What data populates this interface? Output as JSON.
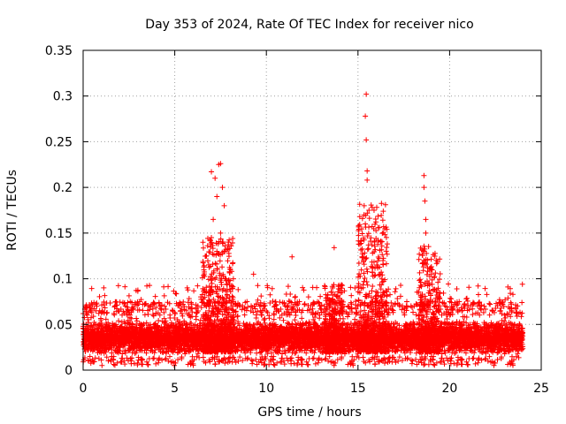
{
  "chart_data": {
    "type": "scatter",
    "title": "Day 353 of 2024, Rate Of TEC Index for receiver nico",
    "xlabel": "GPS time / hours",
    "ylabel": "ROTI / TECUs",
    "xlim": [
      0,
      25
    ],
    "ylim": [
      0,
      0.35
    ],
    "xticks": [
      0,
      5,
      10,
      15,
      20,
      25
    ],
    "xtick_labels": [
      "0",
      "5",
      "10",
      "15",
      "20",
      "25"
    ],
    "yticks": [
      0,
      0.05,
      0.1,
      0.15,
      0.2,
      0.25,
      0.3,
      0.35
    ],
    "ytick_labels": [
      "0",
      "0.05",
      "0.1",
      "0.15",
      "0.2",
      "0.25",
      "0.3",
      "0.35"
    ],
    "grid": true,
    "marker": "+",
    "color": "#ff0000",
    "series": [
      {
        "name": "ROTI",
        "notable_points": [
          {
            "x": 7.0,
            "y": 0.217
          },
          {
            "x": 7.2,
            "y": 0.21
          },
          {
            "x": 7.3,
            "y": 0.19
          },
          {
            "x": 7.1,
            "y": 0.165
          },
          {
            "x": 7.0,
            "y": 0.145
          },
          {
            "x": 7.4,
            "y": 0.225
          },
          {
            "x": 7.5,
            "y": 0.226
          },
          {
            "x": 7.6,
            "y": 0.2
          },
          {
            "x": 7.7,
            "y": 0.18
          },
          {
            "x": 7.5,
            "y": 0.15
          },
          {
            "x": 7.3,
            "y": 0.13
          },
          {
            "x": 7.6,
            "y": 0.14
          },
          {
            "x": 9.3,
            "y": 0.105
          },
          {
            "x": 11.4,
            "y": 0.124
          },
          {
            "x": 13.7,
            "y": 0.134
          },
          {
            "x": 15.45,
            "y": 0.302
          },
          {
            "x": 15.4,
            "y": 0.278
          },
          {
            "x": 15.45,
            "y": 0.252
          },
          {
            "x": 15.5,
            "y": 0.218
          },
          {
            "x": 15.5,
            "y": 0.208
          },
          {
            "x": 15.6,
            "y": 0.175
          },
          {
            "x": 15.4,
            "y": 0.16
          },
          {
            "x": 15.3,
            "y": 0.12
          },
          {
            "x": 16.5,
            "y": 0.181
          },
          {
            "x": 16.4,
            "y": 0.157
          },
          {
            "x": 16.3,
            "y": 0.136
          },
          {
            "x": 18.6,
            "y": 0.213
          },
          {
            "x": 18.6,
            "y": 0.2
          },
          {
            "x": 18.65,
            "y": 0.185
          },
          {
            "x": 18.7,
            "y": 0.165
          },
          {
            "x": 18.7,
            "y": 0.15
          },
          {
            "x": 18.6,
            "y": 0.12
          },
          {
            "x": 18.8,
            "y": 0.108
          }
        ],
        "baseline_band": {
          "x_start": 0,
          "x_end": 24,
          "typical_min": 0.01,
          "typical_max": 0.06
        },
        "clusters": [
          {
            "x_start": 6.5,
            "x_end": 8.2,
            "max": 0.226
          },
          {
            "x_start": 13.2,
            "x_end": 14.2,
            "max": 0.134
          },
          {
            "x_start": 15.0,
            "x_end": 16.6,
            "max": 0.302
          },
          {
            "x_start": 18.3,
            "x_end": 19.5,
            "max": 0.213
          }
        ]
      }
    ]
  }
}
